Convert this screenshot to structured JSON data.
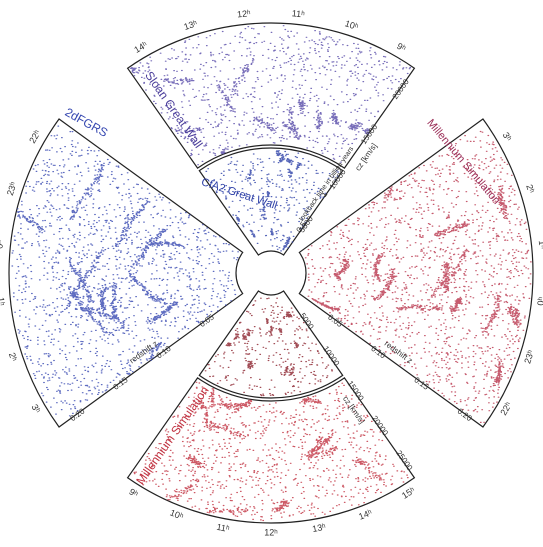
{
  "top": {
    "outer_wedge_label": "Sloan Great Wall",
    "inner_wedge_label": "CfA2 Great Wall",
    "ra_ticks": [
      "14ʰ",
      "13ʰ",
      "12ʰ",
      "11ʰ",
      "10ʰ",
      "9ʰ"
    ],
    "cz_ticks": [
      "5000",
      "10000",
      "15000",
      "20000"
    ],
    "cz_label": "cz [km/s]",
    "lookback_ticks": [
      "0.5",
      "1"
    ],
    "lookback_label": "lookback time in billion years"
  },
  "left": {
    "label": "2dFGRS",
    "ra_ticks": [
      "22ʰ",
      "23ʰ",
      "0ʰ",
      "1ʰ",
      "2ʰ",
      "3ʰ"
    ],
    "z_ticks": [
      "0.05",
      "0.10",
      "0.15",
      "0.20"
    ],
    "z_label": "redshift z"
  },
  "right": {
    "label": "Millennium Simulation",
    "ra_ticks": [
      "3ʰ",
      "2ʰ",
      "1ʰ",
      "0ʰ",
      "23ʰ",
      "22ʰ"
    ],
    "z_ticks": [
      "0.05",
      "0.10",
      "0.15",
      "0.20"
    ],
    "z_label": "redshift z"
  },
  "bottom": {
    "label": "Millennium Simulation",
    "ra_ticks": [
      "9ʰ",
      "10ʰ",
      "11ʰ",
      "12ʰ",
      "13ʰ",
      "14ʰ",
      "15ʰ"
    ],
    "cz_ticks": [
      "5000",
      "10000",
      "15000",
      "20000",
      "25000"
    ],
    "cz_label": "cz [km/s]"
  }
}
